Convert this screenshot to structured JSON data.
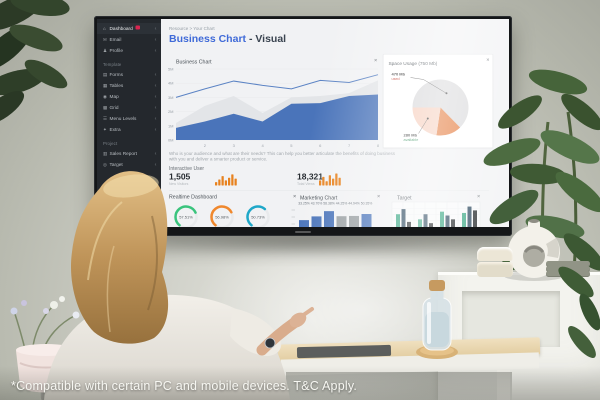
{
  "caption": "*Compatible with certain PC and mobile devices. T&C Apply.",
  "ui": {
    "close_glyph": "×",
    "chevron_glyph": "‹"
  },
  "colors": {
    "accent_blue": "#3f6ad8",
    "chart_blue": "#4a74ba",
    "chart_gray": "#e3e5e8",
    "spark_orange": "#e8821e",
    "pie_gray": "#d8d8da",
    "pie_peach": "#f6cdbb",
    "pie_orange": "#e2702d",
    "gauge_green": "#3ac47d",
    "gauge_orange": "#f0882d",
    "gauge_teal": "#1fa8c9",
    "bar_gray": "#9aa0a3",
    "target_green": "#2aa07a",
    "target_navy": "#1b3a52",
    "target_black": "#14181b",
    "badge_red": "#d92550"
  },
  "sidebar": {
    "sections": [
      {
        "label": "",
        "items": [
          {
            "label": "Dashboard",
            "icon": "dashboard",
            "glyph": "⌂",
            "active": true,
            "badge": true
          },
          {
            "label": "Email",
            "icon": "email",
            "glyph": "✉"
          },
          {
            "label": "Profile",
            "icon": "profile",
            "glyph": "♟"
          }
        ]
      },
      {
        "label": "Template",
        "items": [
          {
            "label": "Forms",
            "icon": "forms",
            "glyph": "▤"
          },
          {
            "label": "Tables",
            "icon": "tables",
            "glyph": "▦"
          },
          {
            "label": "Map",
            "icon": "map",
            "glyph": "◉"
          },
          {
            "label": "Grid",
            "icon": "grid",
            "glyph": "▩"
          },
          {
            "label": "Menu Levels",
            "icon": "menu-levels",
            "glyph": "☰"
          },
          {
            "label": "Extra",
            "icon": "extra",
            "glyph": "✦"
          }
        ]
      },
      {
        "label": "Project",
        "items": [
          {
            "label": "Sales Report",
            "icon": "sales-report",
            "glyph": "▥"
          },
          {
            "label": "Target",
            "icon": "target",
            "glyph": "◎"
          }
        ]
      }
    ]
  },
  "header": {
    "breadcrumb": "Resource > Your Chart",
    "title": "Business Chart",
    "subtitle": " - Visual"
  },
  "panels": {
    "business": {
      "title": "Business Chart"
    },
    "space": {
      "title": "Space Usage (750 Mb)"
    },
    "realtime": {
      "title": "Realtime Dashboard"
    },
    "marketing": {
      "title": "Marketing Chart"
    },
    "target": {
      "title": "Target"
    }
  },
  "description_lines": [
    "Who is your audience and what are their needs? This can help you better articulate the benefits of doing business",
    "with you and deliver a smarter product or service."
  ],
  "stats": {
    "heading": "Interactive User",
    "items": [
      {
        "value": "1,505",
        "caption": "New Visitors"
      },
      {
        "value": "18,321",
        "caption": "Total Views"
      }
    ]
  },
  "chart_data": [
    {
      "id": "business",
      "type": "area",
      "title": "Business Chart",
      "x": [
        1,
        2,
        3,
        4,
        5,
        6,
        7,
        8
      ],
      "x_ticks_shown": [
        2,
        3,
        4,
        5,
        6,
        7,
        8
      ],
      "ylabels": [
        "5M",
        "4M",
        "3M",
        "2M",
        "1M",
        "0M"
      ],
      "ylim": [
        0,
        5
      ],
      "grid": true,
      "legend": "none",
      "series": [
        {
          "name": "total",
          "style": "line",
          "color": "#5b83c4",
          "values": [
            3.0,
            3.6,
            4.15,
            3.85,
            3.6,
            4.2,
            4.05,
            4.6
          ]
        },
        {
          "name": "secondary",
          "style": "area",
          "color": "#e3e5e8",
          "values": [
            1.2,
            2.4,
            3.1,
            1.9,
            3.0,
            3.1,
            3.3,
            4.2
          ]
        },
        {
          "name": "primary",
          "style": "area",
          "color": "#4a74ba",
          "values": [
            0.85,
            1.3,
            1.85,
            1.3,
            2.55,
            2.6,
            3.1,
            3.2
          ]
        }
      ]
    },
    {
      "id": "space",
      "type": "pie",
      "title": "Space Usage (750 Mb)",
      "total": 750,
      "start_angle_deg": 180,
      "slices": [
        {
          "label": "470 Mb",
          "sublabel": "used",
          "value": 470,
          "color": "#d8d8da",
          "sublabel_color": "#c0392b"
        },
        {
          "label": "",
          "sublabel": "",
          "value": 110,
          "color": "#e2702d",
          "sublabel_color": ""
        },
        {
          "label": "280 Mb",
          "sublabel": "available",
          "value": 170,
          "color": "#f6cdbb",
          "sublabel_color": "#2e8b57"
        }
      ]
    },
    {
      "id": "realtime",
      "type": "gauges",
      "title": "Realtime Dashboard",
      "gauges": [
        {
          "value": 57.51,
          "label": "57.51%",
          "color": "#3ac47d"
        },
        {
          "value": 56.98,
          "label": "56.98%",
          "color": "#f0882d"
        },
        {
          "value": 50.73,
          "label": "50.73%",
          "color": "#1fa8c9"
        }
      ]
    },
    {
      "id": "marketing",
      "type": "bar",
      "title": "Marketing Chart",
      "ylim": [
        0,
        70
      ],
      "labels": [
        "33.25%",
        "43.70%",
        "58.38%",
        "44.25%",
        "44.94%",
        "50.35%"
      ],
      "values": [
        33.25,
        43.7,
        58.38,
        44.25,
        44.94,
        50.35
      ],
      "colors": [
        "#4a74ba",
        "#4a74ba",
        "#4a74ba",
        "#9aa0a3",
        "#9aa0a3",
        "#4a74ba"
      ]
    },
    {
      "id": "target",
      "type": "grouped-bar",
      "title": "Target",
      "ylim": [
        0,
        18
      ],
      "grid": true,
      "groups": [
        [
          10,
          14,
          4
        ],
        [
          6,
          10,
          3
        ],
        [
          12,
          9,
          6
        ],
        [
          11,
          16,
          13
        ]
      ],
      "colors": [
        "#2aa07a",
        "#1b3a52",
        "#14181b"
      ]
    },
    {
      "id": "spark1",
      "type": "sparkline",
      "values": [
        4,
        7,
        11,
        6,
        9,
        13,
        8
      ],
      "color": "#e8821e"
    },
    {
      "id": "spark2",
      "type": "sparkline",
      "values": [
        6,
        10,
        5,
        12,
        8,
        14,
        9
      ],
      "color": "#e8821e"
    }
  ]
}
